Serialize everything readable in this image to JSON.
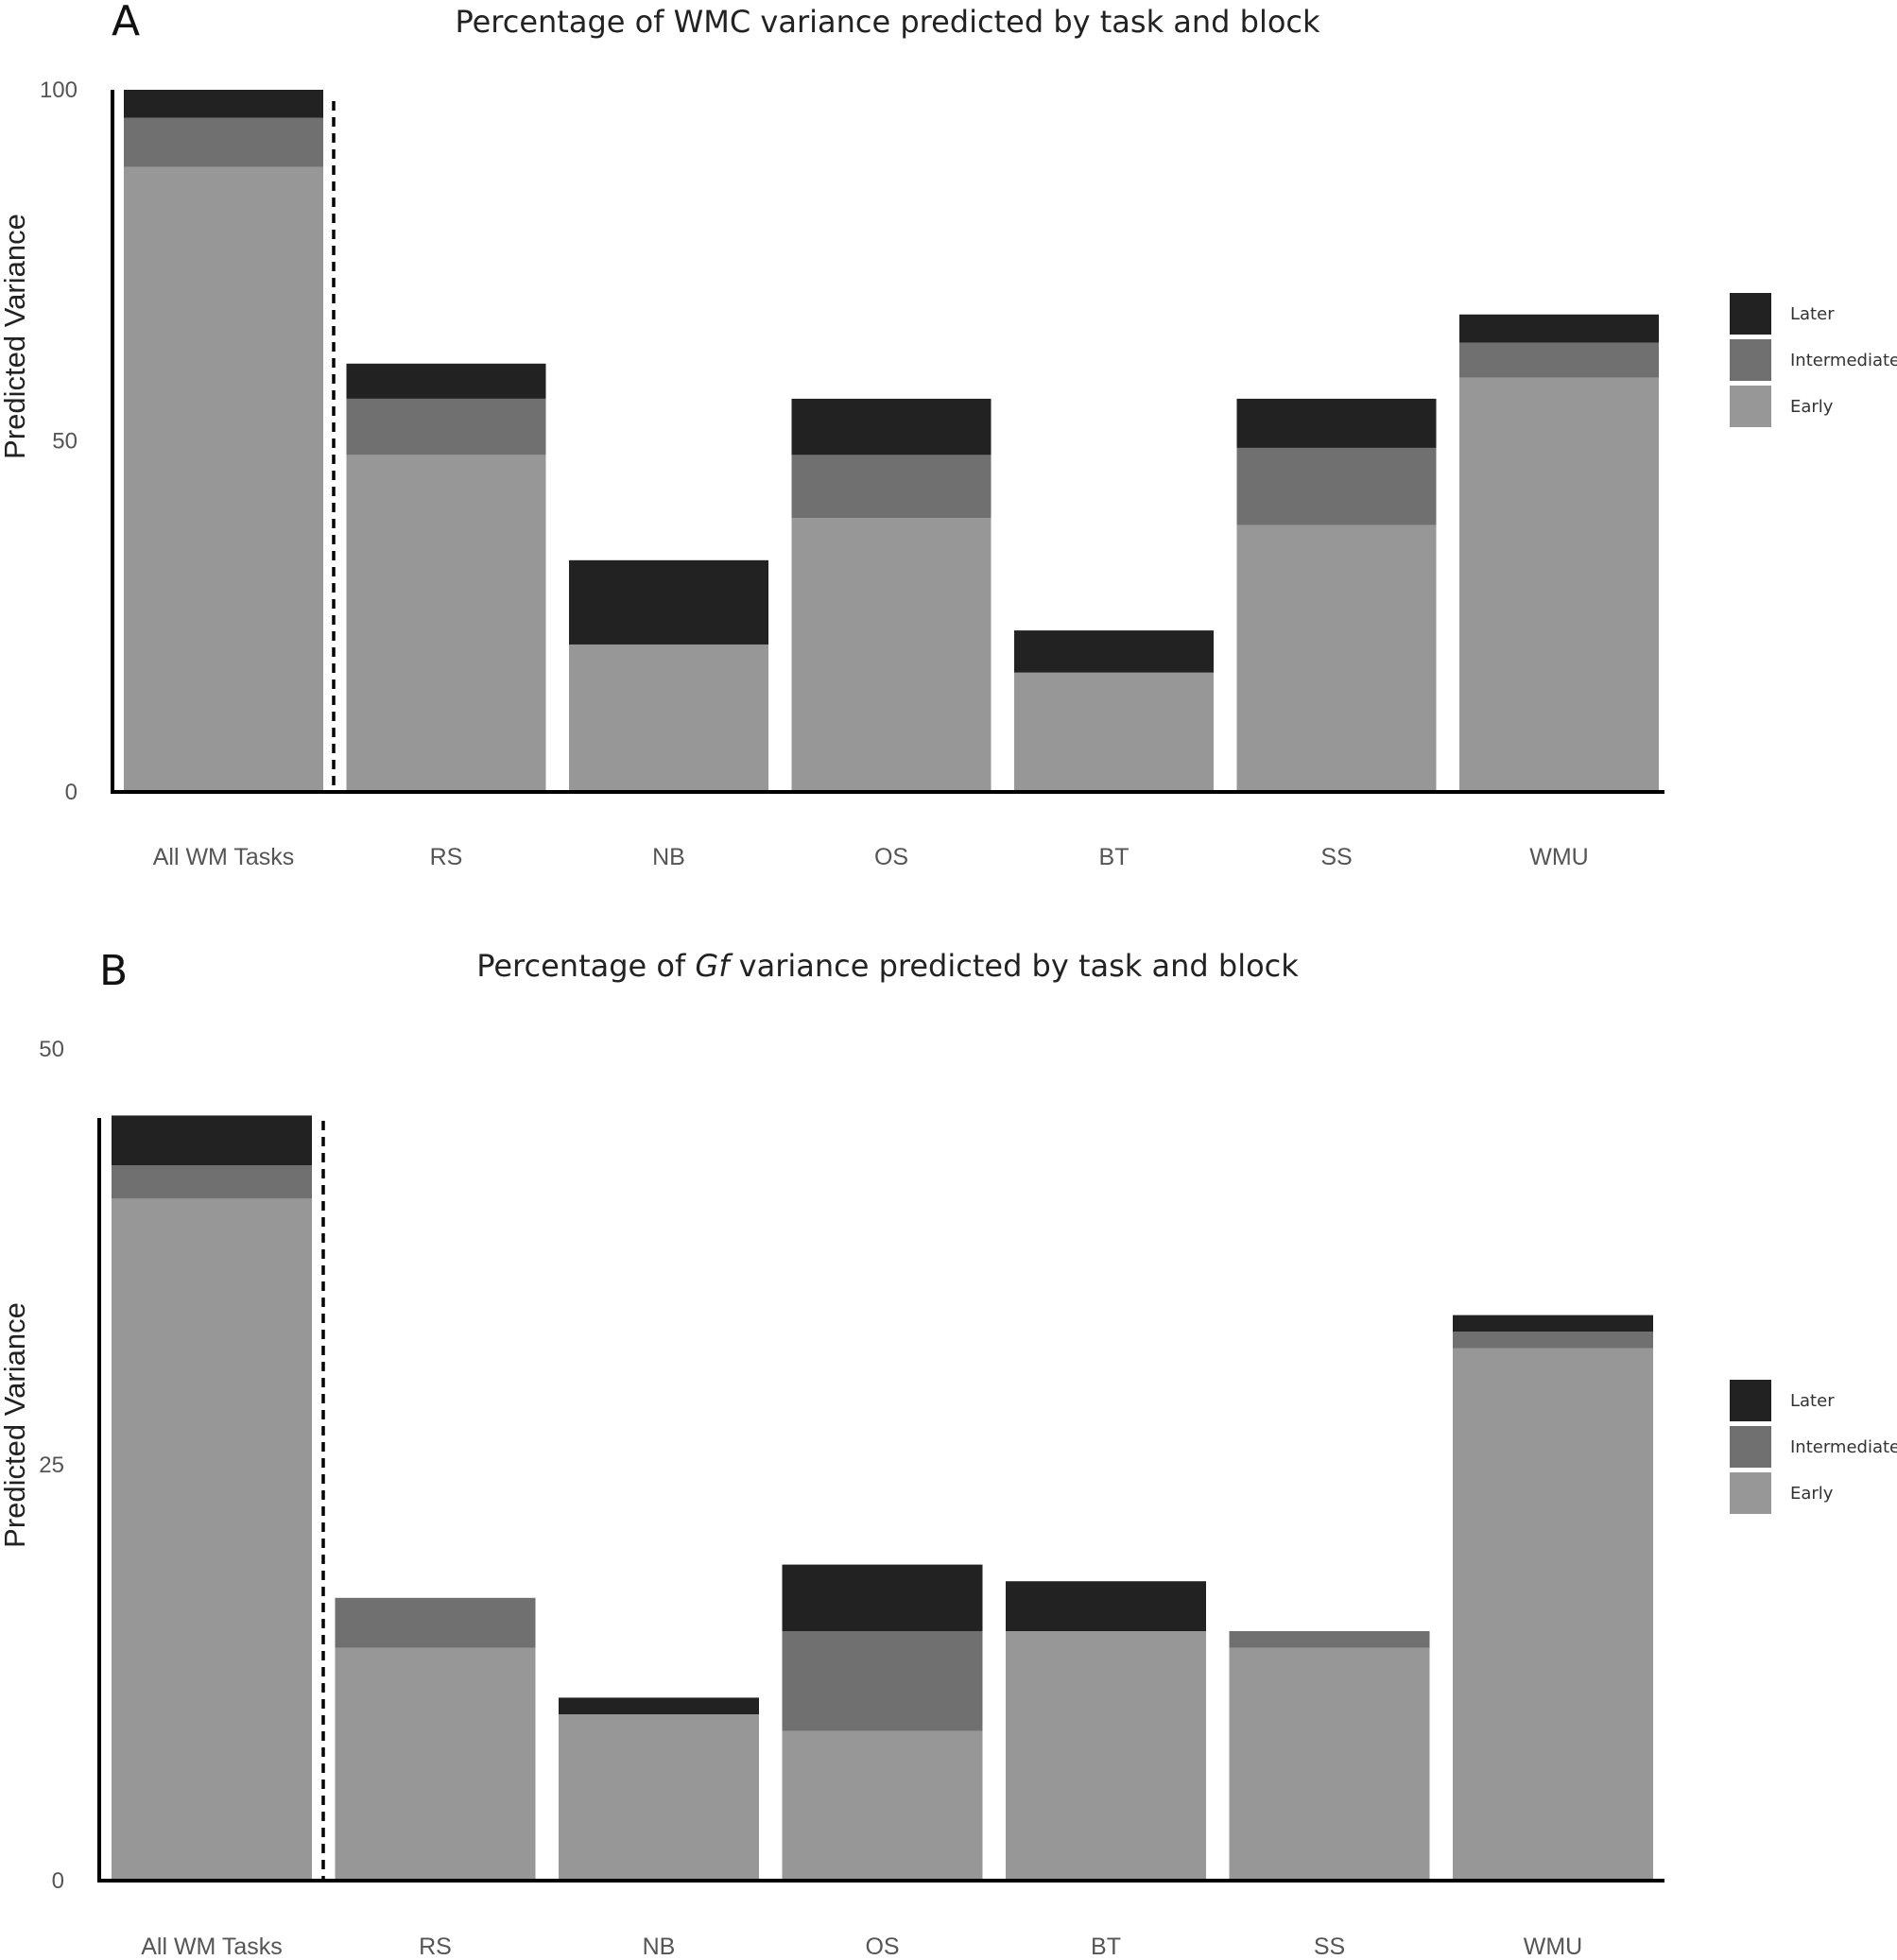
{
  "colors": {
    "Early": "#979797",
    "Intermediate": "#707070",
    "Later": "#222222",
    "axis": "#000000"
  },
  "chart_data": [
    {
      "type": "bar",
      "stacked": true,
      "panel": "A",
      "title": "Percentage of WMC variance predicted by task and block",
      "ylabel": "Predicted Variance",
      "xlabel": "",
      "ylim": [
        0,
        100
      ],
      "yticks": [
        0,
        50,
        100
      ],
      "categories": [
        "All WM Tasks",
        "RS",
        "NB",
        "OS",
        "BT",
        "SS",
        "WMU"
      ],
      "series": [
        {
          "name": "Early",
          "values": [
            89,
            48,
            21,
            39,
            17,
            38,
            59
          ]
        },
        {
          "name": "Intermediate",
          "values": [
            7,
            8,
            0,
            9,
            0,
            11,
            5
          ]
        },
        {
          "name": "Later",
          "values": [
            4,
            5,
            12,
            8,
            6,
            7,
            4
          ]
        }
      ],
      "legend_order": [
        "Later",
        "Intermediate",
        "Early"
      ],
      "legend_position": "right",
      "separator_after": "All WM Tasks",
      "grid": false
    },
    {
      "type": "bar",
      "stacked": true,
      "panel": "B",
      "title_parts": [
        "Percentage of ",
        "Gf",
        " variance predicted by task and block"
      ],
      "ylabel": "Predicted Variance",
      "xlabel": "",
      "ylim": [
        0,
        50
      ],
      "yticks": [
        0,
        25,
        50
      ],
      "categories": [
        "All WM Tasks",
        "RS",
        "NB",
        "OS",
        "BT",
        "SS",
        "WMU"
      ],
      "series": [
        {
          "name": "Early",
          "values": [
            41,
            14,
            10,
            9,
            15,
            14,
            32
          ]
        },
        {
          "name": "Intermediate",
          "values": [
            2,
            3,
            0,
            6,
            0,
            1,
            1
          ]
        },
        {
          "name": "Later",
          "values": [
            3,
            0,
            1,
            4,
            3,
            0,
            1
          ]
        }
      ],
      "legend_order": [
        "Later",
        "Intermediate",
        "Early"
      ],
      "legend_position": "right",
      "separator_after": "All WM Tasks",
      "grid": false
    }
  ]
}
